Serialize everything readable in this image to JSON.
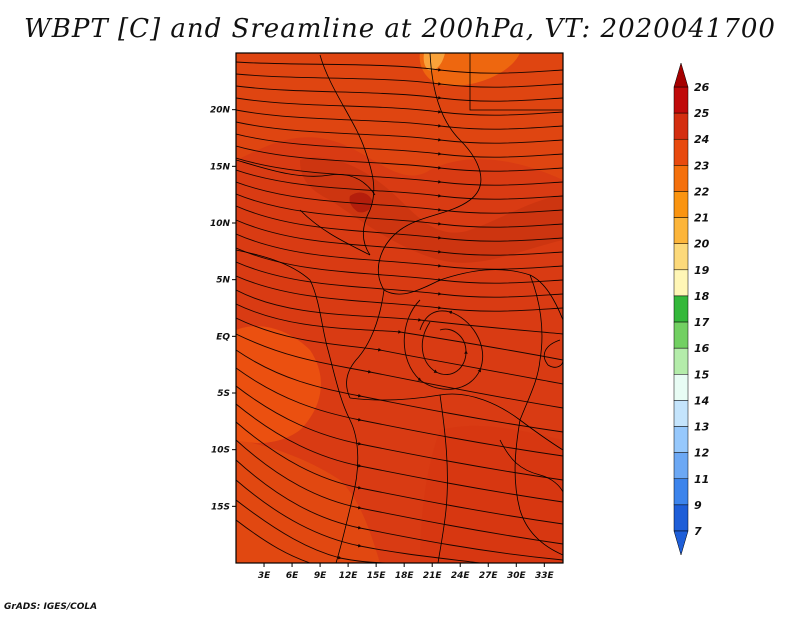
{
  "header": {
    "title": "WBPT [C] and Sreamline at 200hPa, VT: 2020041700"
  },
  "map": {
    "projection": "lat-lon",
    "lon_range": [
      0,
      35
    ],
    "lat_range": [
      -20,
      25
    ],
    "fill_color": "#d93b13",
    "lat_labels": [
      {
        "lat": 20,
        "label": "20N"
      },
      {
        "lat": 15,
        "label": "15N"
      },
      {
        "lat": 10,
        "label": "10N"
      },
      {
        "lat": 5,
        "label": "5N"
      },
      {
        "lat": 0,
        "label": "EQ"
      },
      {
        "lat": -5,
        "label": "5S"
      },
      {
        "lat": -10,
        "label": "10S"
      },
      {
        "lat": -15,
        "label": "15S"
      }
    ],
    "lon_labels": [
      {
        "lon": 3,
        "label": "3E"
      },
      {
        "lon": 6,
        "label": "6E"
      },
      {
        "lon": 9,
        "label": "9E"
      },
      {
        "lon": 12,
        "label": "12E"
      },
      {
        "lon": 15,
        "label": "15E"
      },
      {
        "lon": 18,
        "label": "18E"
      },
      {
        "lon": 21,
        "label": "21E"
      },
      {
        "lon": 24,
        "label": "24E"
      },
      {
        "lon": 27,
        "label": "27E"
      },
      {
        "lon": 30,
        "label": "30E"
      },
      {
        "lon": 33,
        "label": "33E"
      }
    ]
  },
  "colorbar": {
    "labels": [
      "26",
      "25",
      "24",
      "23",
      "22",
      "21",
      "20",
      "19",
      "18",
      "17",
      "16",
      "15",
      "14",
      "13",
      "12",
      "11",
      "9",
      "7"
    ],
    "colors": [
      "#a50000",
      "#c00a0a",
      "#d42e10",
      "#e84a0e",
      "#f4700c",
      "#fa9410",
      "#fcb53a",
      "#fcd97a",
      "#fff6b6",
      "#34b83a",
      "#72d062",
      "#b4ecaa",
      "#e8fcf4",
      "#c4e4fc",
      "#96c8fc",
      "#6ca8f4",
      "#3c84ec",
      "#1e5ed8"
    ]
  },
  "footer": {
    "text": "GrADS: IGES/COLA"
  }
}
